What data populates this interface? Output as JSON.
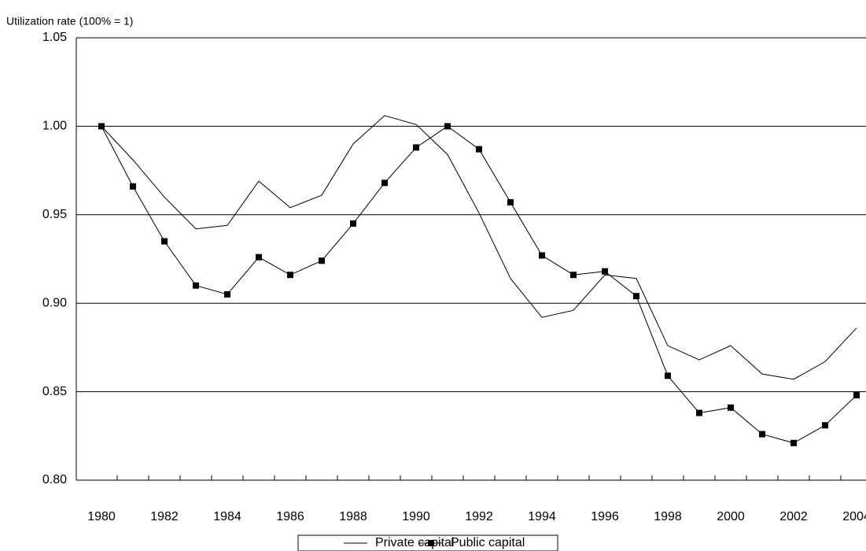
{
  "chart_data": {
    "type": "line",
    "y_axis_label": "Utilization rate (100% = 1)",
    "categories": [
      "1980",
      null,
      "1982",
      null,
      "1984",
      null,
      "1986",
      null,
      "1988",
      null,
      "1990",
      null,
      "1992",
      null,
      "1994",
      null,
      "1996",
      null,
      "1998",
      null,
      "2000",
      null,
      "2002",
      null,
      "2004"
    ],
    "ylim": [
      0.8,
      1.05
    ],
    "yticks": [
      {
        "value": 0.8,
        "label": "0.80"
      },
      0.85,
      {
        "value": 0.9,
        "label": "0.90"
      },
      0.95,
      {
        "value": 1.0,
        "label": "1.00"
      },
      1.05
    ],
    "grid": true,
    "series": [
      {
        "name": "Private capital",
        "color": "#000000",
        "marker": "none",
        "values": [
          1.0,
          0.981,
          0.96,
          0.942,
          0.944,
          0.969,
          0.954,
          0.961,
          0.99,
          1.006,
          1.001,
          0.984,
          0.951,
          0.914,
          0.892,
          0.896,
          0.916,
          0.914,
          0.876,
          0.868,
          0.876,
          0.86,
          0.857,
          0.867,
          0.886
        ]
      },
      {
        "name": "Public capital",
        "color": "#000000",
        "marker": "square",
        "values": [
          1.0,
          0.966,
          0.935,
          0.91,
          0.905,
          0.926,
          0.916,
          0.924,
          0.945,
          0.968,
          0.988,
          1.0,
          0.987,
          0.957,
          0.927,
          0.916,
          0.918,
          0.904,
          0.859,
          0.838,
          0.841,
          0.826,
          0.821,
          0.831,
          0.848
        ]
      }
    ]
  }
}
